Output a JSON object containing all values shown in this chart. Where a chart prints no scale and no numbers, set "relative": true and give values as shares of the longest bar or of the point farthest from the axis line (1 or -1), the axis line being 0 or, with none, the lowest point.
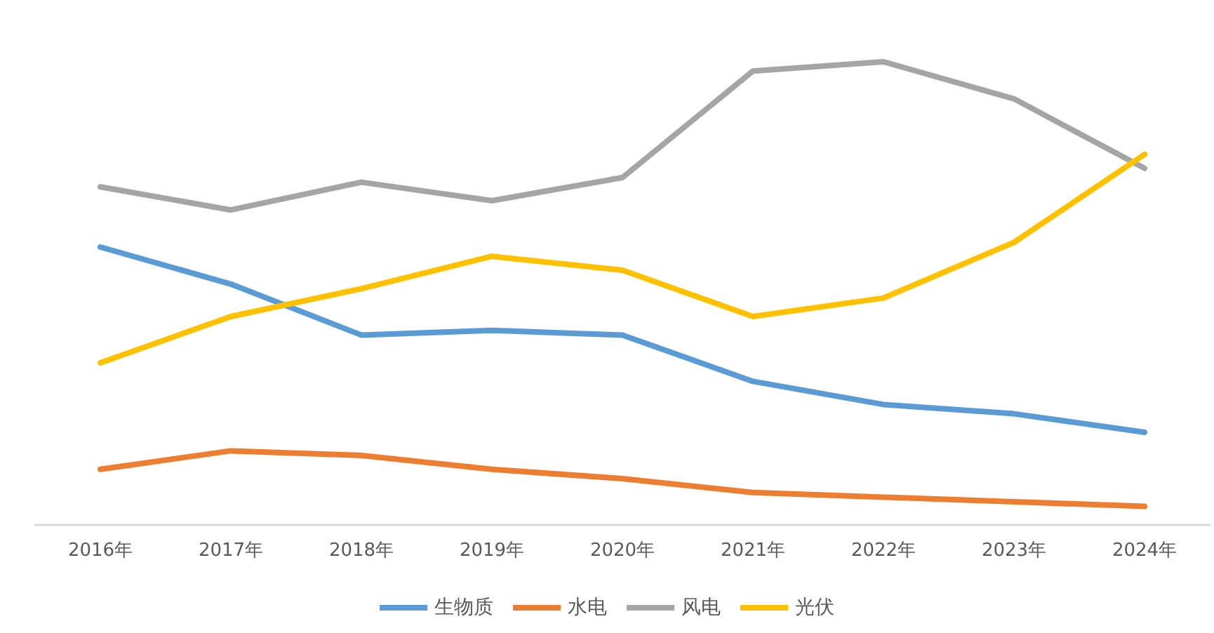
{
  "chart_data": {
    "type": "line",
    "relative": true,
    "categories": [
      "2016年",
      "2017年",
      "2018年",
      "2019年",
      "2020年",
      "2021年",
      "2022年",
      "2023年",
      "2024年"
    ],
    "series": [
      {
        "name": "生物质",
        "color": "#5b9bd5",
        "values": [
          0.6,
          0.52,
          0.41,
          0.42,
          0.41,
          0.31,
          0.26,
          0.24,
          0.2
        ]
      },
      {
        "name": "水电",
        "color": "#ed7d31",
        "values": [
          0.12,
          0.16,
          0.15,
          0.12,
          0.1,
          0.07,
          0.06,
          0.05,
          0.04
        ]
      },
      {
        "name": "风电",
        "color": "#a5a5a5",
        "values": [
          0.73,
          0.68,
          0.74,
          0.7,
          0.75,
          0.98,
          1,
          0.92,
          0.77
        ]
      },
      {
        "name": "光伏",
        "color": "#ffc000",
        "values": [
          0.35,
          0.45,
          0.51,
          0.58,
          0.55,
          0.45,
          0.49,
          0.61,
          0.8
        ]
      }
    ],
    "legend": "bottom",
    "grid": false,
    "line_style": "solid"
  }
}
